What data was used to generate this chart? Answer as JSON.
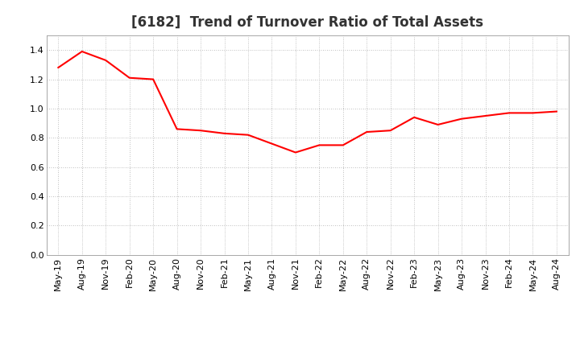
{
  "title": "[6182]  Trend of Turnover Ratio of Total Assets",
  "x_labels": [
    "May-19",
    "Aug-19",
    "Nov-19",
    "Feb-20",
    "May-20",
    "Aug-20",
    "Nov-20",
    "Feb-21",
    "May-21",
    "Aug-21",
    "Nov-21",
    "Feb-22",
    "May-22",
    "Aug-22",
    "Nov-22",
    "Feb-23",
    "May-23",
    "Aug-23",
    "Nov-23",
    "Feb-24",
    "May-24",
    "Aug-24"
  ],
  "y_values": [
    1.28,
    1.39,
    1.33,
    1.21,
    1.2,
    0.86,
    0.85,
    0.83,
    0.82,
    0.76,
    0.7,
    0.75,
    0.75,
    0.84,
    0.85,
    0.94,
    0.89,
    0.93,
    0.95,
    0.97,
    0.97,
    0.98
  ],
  "line_color": "#FF0000",
  "line_width": 1.5,
  "ylim": [
    0.0,
    1.5
  ],
  "yticks": [
    0.0,
    0.2,
    0.4,
    0.6,
    0.8,
    1.0,
    1.2,
    1.4
  ],
  "background_color": "#FFFFFF",
  "plot_bg_color": "#FFFFFF",
  "grid_color": "#AAAAAA",
  "title_fontsize": 12,
  "tick_fontsize": 8,
  "title_color": "#333333"
}
